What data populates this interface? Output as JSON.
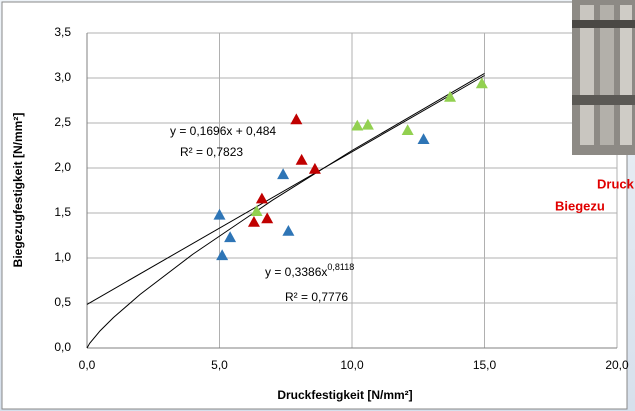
{
  "chart_data": {
    "type": "scatter",
    "x_label": "Druckfestigkeit  [N/mm²]",
    "y_label": "Biegezugfestigkeit  [N/mm²]",
    "xlim": [
      0,
      20
    ],
    "ylim": [
      0,
      3.5
    ],
    "xticks": [
      {
        "value": 0,
        "label": "0,0"
      },
      {
        "value": 5,
        "label": "5,0"
      },
      {
        "value": 10,
        "label": "10,0"
      },
      {
        "value": 15,
        "label": "15,0"
      },
      {
        "value": 20,
        "label": "20,0"
      }
    ],
    "yticks": [
      {
        "value": 0,
        "label": "0,0"
      },
      {
        "value": 0.5,
        "label": "0,5"
      },
      {
        "value": 1,
        "label": "1,0"
      },
      {
        "value": 1.5,
        "label": "1,5"
      },
      {
        "value": 2,
        "label": "2,0"
      },
      {
        "value": 2.5,
        "label": "2,5"
      },
      {
        "value": 3,
        "label": "3,0"
      },
      {
        "value": 3.5,
        "label": "3,5"
      }
    ],
    "grid": true,
    "series": [
      {
        "color": "#2e75b6",
        "x": [
          5.0,
          5.1,
          5.4,
          7.4,
          7.6,
          12.7
        ],
        "values": [
          1.48,
          1.03,
          1.23,
          1.93,
          1.3,
          2.32
        ]
      },
      {
        "color": "#c00000",
        "x": [
          6.3,
          6.6,
          6.8,
          7.9,
          8.1,
          8.6
        ],
        "values": [
          1.4,
          1.66,
          1.44,
          2.54,
          2.09,
          1.99
        ]
      },
      {
        "color": "#92d050",
        "x": [
          6.4,
          10.2,
          10.6,
          12.1,
          13.7,
          14.9
        ],
        "values": [
          1.52,
          2.47,
          2.48,
          2.42,
          2.79,
          2.94
        ]
      }
    ],
    "trendlines": [
      {
        "equation": "y = 0,1696x + 0,484",
        "r2": "R² = 0,7823",
        "x": [
          0,
          15
        ],
        "values": [
          0.484,
          3.028
        ]
      },
      {
        "equation": "y = 0,3386x",
        "exponent": "0,8118",
        "r2": "R² = 0,7776",
        "x": [
          0,
          0.1,
          0.5,
          1,
          2,
          4,
          7,
          10,
          15
        ],
        "values": [
          0,
          0.052,
          0.193,
          0.339,
          0.594,
          1.043,
          1.642,
          2.195,
          3.051
        ]
      }
    ]
  },
  "side_text": [
    "Druck",
    "Biegezu"
  ]
}
